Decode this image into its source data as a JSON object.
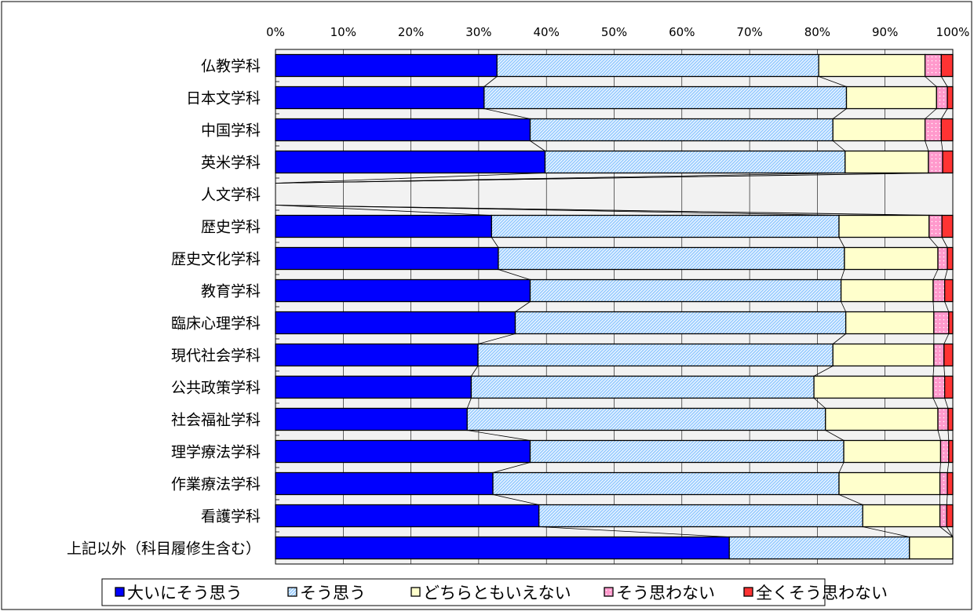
{
  "chart_data": {
    "type": "bar",
    "orientation": "horizontal",
    "stacked": "percent",
    "categories": [
      "仏教学科",
      "日本文学科",
      "中国学科",
      "英米学科",
      "人文学科",
      "歴史学科",
      "歴史文化学科",
      "教育学科",
      "臨床心理学科",
      "現代社会学科",
      "公共政策学科",
      "社会福祉学科",
      "理学療法学科",
      "作業療法学科",
      "看護学科",
      "上記以外（科目履修生含む）"
    ],
    "series": [
      {
        "name": "大いにそう思う",
        "color": "#0000FF",
        "pattern": "solid",
        "values": [
          32.7,
          30.8,
          37.6,
          39.8,
          0,
          31.9,
          32.9,
          37.6,
          35.4,
          29.9,
          28.9,
          28.3,
          37.6,
          32.1,
          38.9,
          67.0
        ]
      },
      {
        "name": "そう思う",
        "color": "#99CCFF",
        "pattern": "diagonal",
        "values": [
          47.5,
          53.5,
          44.7,
          44.3,
          0,
          51.3,
          51.1,
          45.9,
          48.8,
          52.4,
          50.6,
          52.9,
          46.3,
          51.1,
          47.8,
          26.6
        ]
      },
      {
        "name": "どちらともいえない",
        "color": "#FFFFCC",
        "pattern": "solid",
        "values": [
          15.7,
          13.3,
          13.6,
          12.3,
          0,
          13.3,
          13.8,
          13.6,
          13.0,
          14.9,
          17.6,
          16.6,
          14.3,
          14.9,
          11.4,
          6.4
        ]
      },
      {
        "name": "そう思わない",
        "color": "#FF99CC",
        "pattern": "dots",
        "values": [
          2.4,
          1.6,
          2.4,
          2.1,
          0,
          1.9,
          1.4,
          1.7,
          2.2,
          1.5,
          1.7,
          1.5,
          1.2,
          1.1,
          1.0,
          0
        ]
      },
      {
        "name": "全くそう思わない",
        "color": "#FF3333",
        "pattern": "solid",
        "values": [
          1.7,
          0.8,
          1.7,
          1.5,
          0,
          1.6,
          0.8,
          1.2,
          0.6,
          1.3,
          1.2,
          0.7,
          0.6,
          0.8,
          0.9,
          0
        ]
      }
    ],
    "xlim": [
      0,
      100
    ],
    "xticks": [
      "0%",
      "10%",
      "20%",
      "30%",
      "40%",
      "50%",
      "60%",
      "70%",
      "80%",
      "90%",
      "100%"
    ],
    "grid": true,
    "series_lines": true,
    "legend_position": "bottom",
    "title": "",
    "xlabel": "",
    "ylabel": ""
  }
}
